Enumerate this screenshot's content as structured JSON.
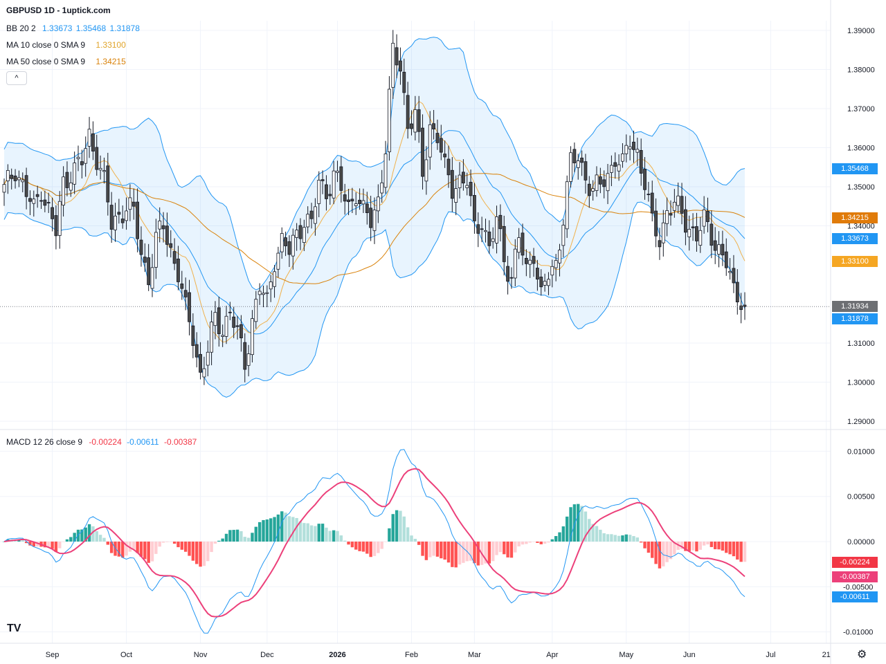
{
  "header": {
    "title": "GBPUSD 1D - 1uptick.com"
  },
  "legends": {
    "bb": {
      "label": "BB 20 2",
      "values": [
        "1.33673",
        "1.35468",
        "1.31878"
      ],
      "color": "#2196f3"
    },
    "ma10": {
      "label": "MA 10 close 0 SMA 9",
      "value": "1.33100",
      "color": "#f0b04a"
    },
    "ma50": {
      "label": "MA 50 close 0 SMA 9",
      "value": "1.34215",
      "color": "#d9820a"
    },
    "macd": {
      "label": "MACD 12 26 close 9",
      "values": [
        "-0.00224",
        "-0.00611",
        "-0.00387"
      ],
      "colors": [
        "#f23645",
        "#2196f3",
        "#f23645"
      ]
    }
  },
  "collapse_label": "^",
  "logo": "TV",
  "settings_icon": "gear-icon",
  "price_labels": [
    {
      "text": "1.35468",
      "value": 1.35468,
      "color": "#2196f3"
    },
    {
      "text": "1.34215",
      "value": 1.34215,
      "color": "#e07b0a"
    },
    {
      "text": "1.33673",
      "value": 1.33673,
      "color": "#2196f3"
    },
    {
      "text": "1.33100",
      "value": 1.331,
      "color": "#f5a623"
    },
    {
      "text": "1.31934",
      "value": 1.31934,
      "color": "#6d6f73"
    },
    {
      "text": "1.31878",
      "value": 1.31878,
      "color": "#2196f3"
    }
  ],
  "macd_labels": [
    {
      "text": "-0.00224",
      "value": -0.00224,
      "color": "#f23645"
    },
    {
      "text": "-0.00387",
      "value": -0.00387,
      "color": "#ec407a"
    },
    {
      "text": "-0.00611",
      "value": -0.00611,
      "color": "#2196f3"
    }
  ],
  "chart_data": {
    "type": "candlestick",
    "price_axis": {
      "ticks": [
        "1.39000",
        "1.38000",
        "1.37000",
        "1.36000",
        "1.35000",
        "1.34000",
        "1.31000",
        "1.30000",
        "1.29000"
      ],
      "tick_values": [
        1.39,
        1.38,
        1.37,
        1.36,
        1.35,
        1.34,
        1.31,
        1.3,
        1.29
      ],
      "range": [
        1.287,
        1.3915
      ]
    },
    "macd_axis": {
      "ticks": [
        "0.01000",
        "0.00500",
        "0.00000",
        "-0.00500",
        "-0.01000"
      ],
      "tick_values": [
        0.01,
        0.005,
        0,
        -0.005,
        -0.01
      ],
      "range": [
        -0.0105,
        0.0102
      ]
    },
    "x_labels": [
      {
        "text": "Sep",
        "bar": 13
      },
      {
        "text": "Oct",
        "bar": 33
      },
      {
        "text": "Nov",
        "bar": 53
      },
      {
        "text": "Dec",
        "bar": 71
      },
      {
        "text": "2026",
        "bar": 90
      },
      {
        "text": "Feb",
        "bar": 110
      },
      {
        "text": "Mar",
        "bar": 127
      },
      {
        "text": "Apr",
        "bar": 148
      },
      {
        "text": "May",
        "bar": 168
      },
      {
        "text": "Jun",
        "bar": 185
      },
      {
        "text": "Jul",
        "bar": 207
      },
      {
        "text": "21",
        "bar": 222
      }
    ],
    "close_anchors": [
      [
        0,
        1.349
      ],
      [
        3,
        1.355
      ],
      [
        6,
        1.348
      ],
      [
        8,
        1.344
      ],
      [
        10,
        1.35
      ],
      [
        12,
        1.344
      ],
      [
        14,
        1.338
      ],
      [
        16,
        1.351
      ],
      [
        18,
        1.354
      ],
      [
        21,
        1.356
      ],
      [
        23,
        1.363
      ],
      [
        25,
        1.358
      ],
      [
        27,
        1.351
      ],
      [
        29,
        1.34
      ],
      [
        31,
        1.343
      ],
      [
        33,
        1.345
      ],
      [
        35,
        1.343
      ],
      [
        37,
        1.333
      ],
      [
        39,
        1.327
      ],
      [
        41,
        1.336
      ],
      [
        43,
        1.34
      ],
      [
        45,
        1.334
      ],
      [
        47,
        1.328
      ],
      [
        49,
        1.318
      ],
      [
        51,
        1.312
      ],
      [
        53,
        1.302
      ],
      [
        55,
        1.308
      ],
      [
        57,
        1.316
      ],
      [
        59,
        1.314
      ],
      [
        61,
        1.318
      ],
      [
        63,
        1.312
      ],
      [
        65,
        1.305
      ],
      [
        67,
        1.316
      ],
      [
        69,
        1.324
      ],
      [
        71,
        1.32
      ],
      [
        73,
        1.332
      ],
      [
        75,
        1.336
      ],
      [
        77,
        1.333
      ],
      [
        79,
        1.338
      ],
      [
        81,
        1.342
      ],
      [
        83,
        1.34
      ],
      [
        85,
        1.351
      ],
      [
        87,
        1.349
      ],
      [
        89,
        1.353
      ],
      [
        91,
        1.349
      ],
      [
        93,
        1.345
      ],
      [
        95,
        1.349
      ],
      [
        97,
        1.343
      ],
      [
        99,
        1.341
      ],
      [
        101,
        1.347
      ],
      [
        103,
        1.36
      ],
      [
        105,
        1.384
      ],
      [
        107,
        1.381
      ],
      [
        109,
        1.366
      ],
      [
        111,
        1.368
      ],
      [
        113,
        1.353
      ],
      [
        115,
        1.366
      ],
      [
        117,
        1.363
      ],
      [
        119,
        1.354
      ],
      [
        121,
        1.35
      ],
      [
        123,
        1.352
      ],
      [
        125,
        1.351
      ],
      [
        127,
        1.339
      ],
      [
        129,
        1.342
      ],
      [
        131,
        1.334
      ],
      [
        133,
        1.341
      ],
      [
        135,
        1.332
      ],
      [
        137,
        1.327
      ],
      [
        139,
        1.337
      ],
      [
        141,
        1.328
      ],
      [
        143,
        1.334
      ],
      [
        145,
        1.322
      ],
      [
        147,
        1.327
      ],
      [
        149,
        1.33
      ],
      [
        151,
        1.343
      ],
      [
        153,
        1.356
      ],
      [
        155,
        1.357
      ],
      [
        157,
        1.353
      ],
      [
        159,
        1.349
      ],
      [
        161,
        1.35
      ],
      [
        163,
        1.353
      ],
      [
        165,
        1.358
      ],
      [
        167,
        1.355
      ],
      [
        169,
        1.362
      ],
      [
        171,
        1.359
      ],
      [
        173,
        1.351
      ],
      [
        175,
        1.34
      ],
      [
        177,
        1.337
      ],
      [
        179,
        1.344
      ],
      [
        181,
        1.345
      ],
      [
        183,
        1.343
      ],
      [
        185,
        1.34
      ],
      [
        187,
        1.337
      ],
      [
        189,
        1.341
      ],
      [
        191,
        1.338
      ],
      [
        193,
        1.334
      ],
      [
        195,
        1.33
      ],
      [
        197,
        1.323
      ],
      [
        199,
        1.322
      ],
      [
        200,
        1.3193
      ]
    ],
    "bb": {
      "basis": 1.33673,
      "upper": 1.35468,
      "lower": 1.31878
    },
    "ma10": 1.331,
    "ma50": 1.34215,
    "macd": {
      "histogram": -0.00224,
      "macd": -0.00611,
      "signal": -0.00387
    },
    "last_close": 1.31934
  }
}
